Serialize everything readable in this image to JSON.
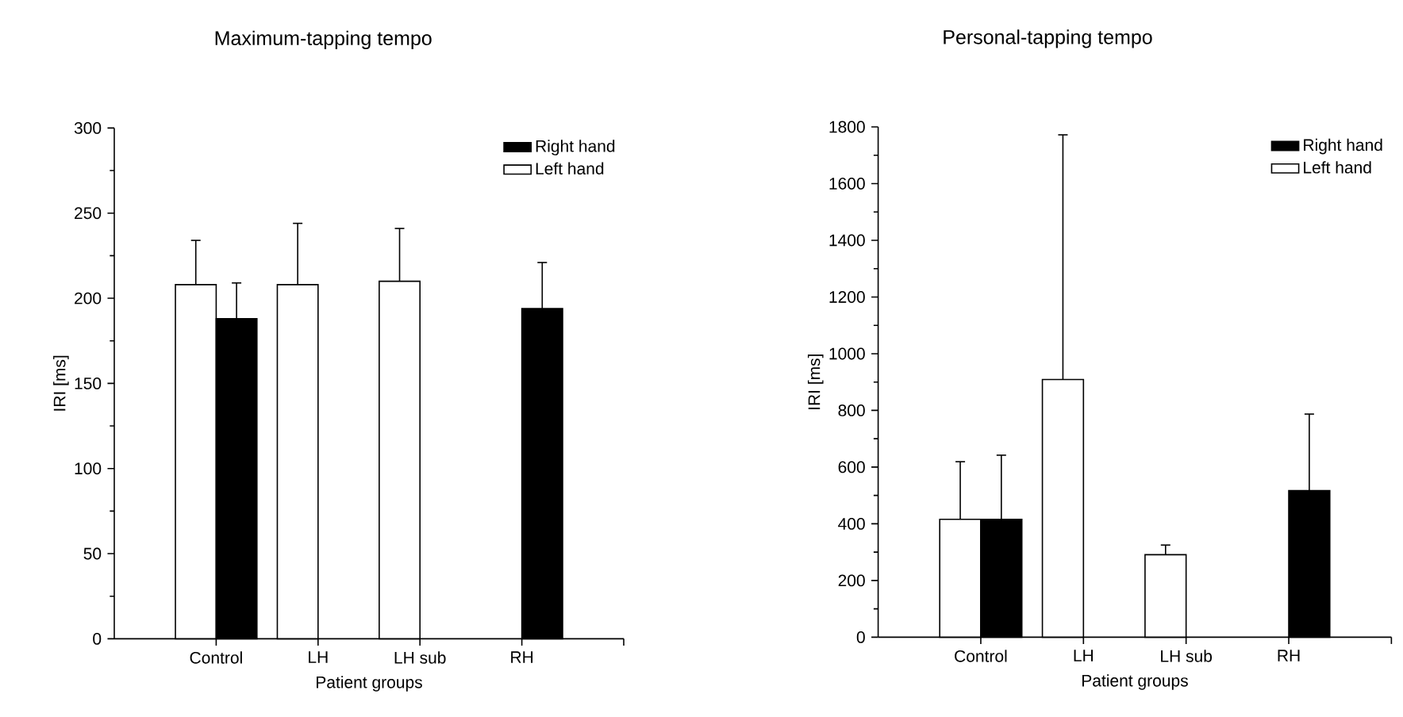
{
  "chart_data": [
    {
      "type": "bar",
      "title": "Maximum-tapping tempo",
      "xlabel": "Patient groups",
      "ylabel": "IRI [ms]",
      "categories": [
        "Control",
        "LH",
        "LH sub",
        "RH"
      ],
      "ylim": [
        0,
        300
      ],
      "yticks": [
        0,
        50,
        100,
        150,
        200,
        250,
        300
      ],
      "legend": "top right",
      "series": [
        {
          "name": "Left hand",
          "color": "#ffffff",
          "values": [
            208,
            208,
            210,
            null
          ],
          "errors": [
            [
              208,
              234
            ],
            [
              208,
              244
            ],
            [
              210,
              241
            ],
            null
          ]
        },
        {
          "name": "Right hand",
          "color": "#000000",
          "values": [
            188,
            null,
            null,
            194
          ],
          "errors": [
            [
              188,
              209
            ],
            null,
            null,
            [
              194,
              221
            ]
          ]
        }
      ]
    },
    {
      "type": "bar",
      "title": "Personal-tapping tempo",
      "xlabel": "Patient groups",
      "ylabel": "IRI [ms]",
      "categories": [
        "Control",
        "LH",
        "LH sub",
        "RH"
      ],
      "ylim": [
        0,
        1800
      ],
      "yticks": [
        0,
        200,
        400,
        600,
        800,
        1000,
        1200,
        1400,
        1600,
        1800
      ],
      "legend": "top right",
      "series": [
        {
          "name": "Left hand",
          "color": "#ffffff",
          "values": [
            416,
            909,
            291,
            null
          ],
          "errors": [
            [
              416,
              619
            ],
            [
              909,
              1772
            ],
            [
              291,
              325
            ],
            null
          ]
        },
        {
          "name": "Right hand",
          "color": "#000000",
          "values": [
            416,
            null,
            null,
            517
          ],
          "errors": [
            [
              416,
              642
            ],
            null,
            null,
            [
              517,
              787
            ]
          ]
        }
      ]
    }
  ]
}
